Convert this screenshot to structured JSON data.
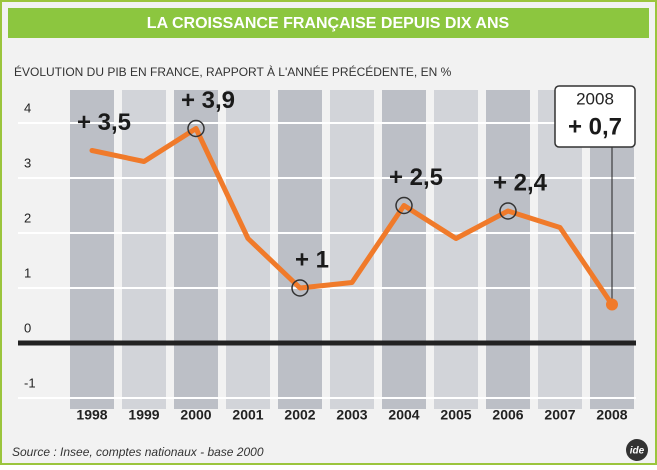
{
  "chart_data": {
    "type": "line",
    "title": "LA CROISSANCE FRANÇAISE DEPUIS DIX ANS",
    "subtitle": "ÉVOLUTION DU PIB EN FRANCE, RAPPORT À L'ANNÉE PRÉCÉDENTE, EN %",
    "source": "Source : Insee, comptes nationaux - base 2000",
    "logo": "ide",
    "categories": [
      "1998",
      "1999",
      "2000",
      "2001",
      "2002",
      "2003",
      "2004",
      "2005",
      "2006",
      "2007",
      "2008"
    ],
    "values": [
      3.5,
      3.3,
      3.9,
      1.9,
      1.0,
      1.1,
      2.5,
      1.9,
      2.4,
      2.1,
      0.7
    ],
    "value_labels": [
      "+ 3,5",
      null,
      "+ 3,9",
      null,
      "+ 1",
      null,
      "+ 2,5",
      null,
      "+ 2,4",
      null,
      "+ 0,7"
    ],
    "color": "#f07a2a",
    "ylim": [
      -1.2,
      4.6
    ],
    "yticks": [
      -1,
      0,
      1,
      2,
      3,
      4
    ],
    "grid": true
  }
}
